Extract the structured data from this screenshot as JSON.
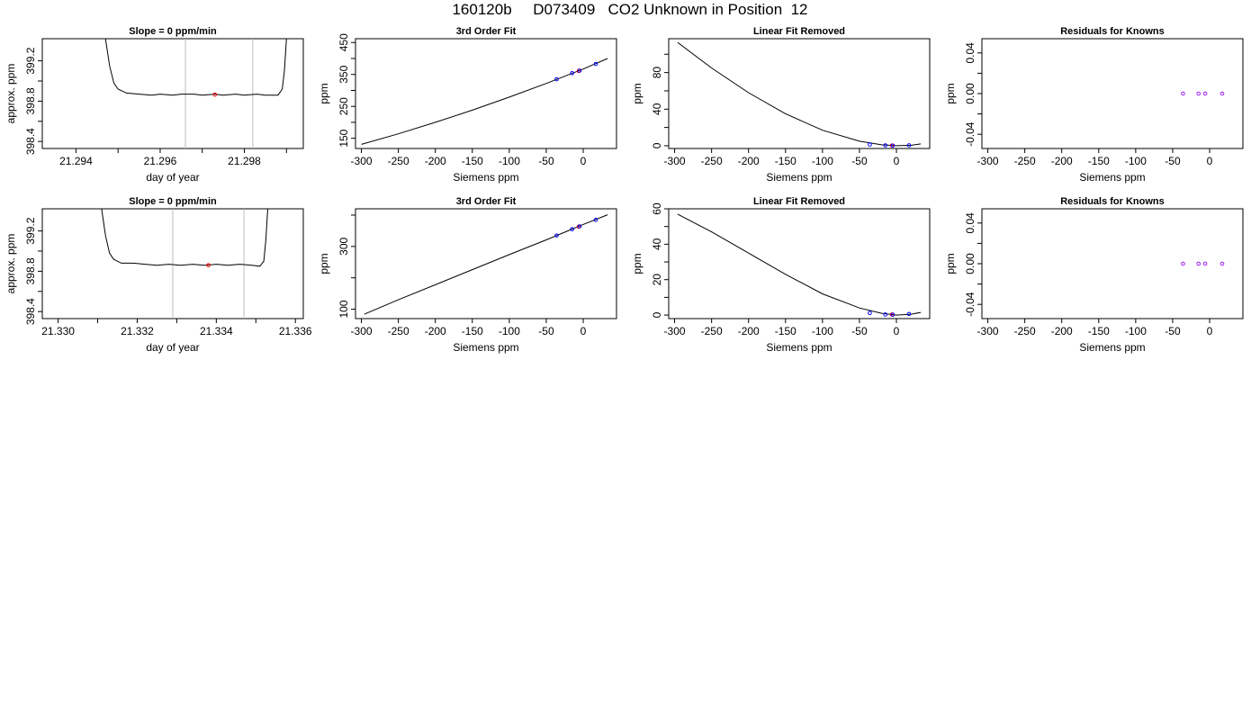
{
  "page": {
    "title": "160120b     D073409   CO2 Unknown in Position  12"
  },
  "colors": {
    "line": "#000000",
    "unknown_point": "#ff0000",
    "known_point": "#0000ff",
    "residual_point": "#a020f0",
    "marker_line": "#bebebe"
  },
  "chart_data": [
    {
      "type": "line",
      "title": "Slope =  0  ppm/min",
      "xlabel": "day of year",
      "ylabel": "approx. ppm",
      "xlim": [
        21.2932,
        21.2994
      ],
      "ylim": [
        398.33,
        399.42
      ],
      "xticks": [
        21.294,
        21.295,
        21.296,
        21.297,
        21.298,
        21.299
      ],
      "xtick_labels": [
        "21.294",
        "",
        "21.296",
        "",
        "21.298",
        ""
      ],
      "yticks": [
        398.4,
        398.6,
        398.8,
        399.0,
        399.2
      ],
      "ytick_labels": [
        "398.4",
        "",
        "398.8",
        "",
        "399.2"
      ],
      "vlines": [
        21.2966,
        21.2982
      ],
      "x": [
        21.2947,
        21.2948,
        21.2949,
        21.295,
        21.2952,
        21.2955,
        21.2958,
        21.296,
        21.2963,
        21.2965,
        21.2968,
        21.297,
        21.2973,
        21.2975,
        21.2978,
        21.298,
        21.2983,
        21.2985,
        21.2988,
        21.2989,
        21.29895,
        21.299
      ],
      "y": [
        399.42,
        399.15,
        398.98,
        398.92,
        398.88,
        398.87,
        398.86,
        398.87,
        398.86,
        398.87,
        398.87,
        398.86,
        398.87,
        398.86,
        398.87,
        398.86,
        398.87,
        398.86,
        398.86,
        398.92,
        399.1,
        399.42
      ],
      "points": [
        {
          "x": 21.2973,
          "y": 398.865,
          "color": "#ff0000"
        }
      ]
    },
    {
      "type": "line",
      "title": "3rd Order Fit",
      "xlabel": "Siemens ppm",
      "ylabel": "ppm",
      "xlim": [
        -308,
        45
      ],
      "ylim": [
        118,
        462
      ],
      "xticks": [
        -300,
        -250,
        -200,
        -150,
        -100,
        -50,
        0
      ],
      "xtick_labels": [
        "-300",
        "-250",
        "-200",
        "-150",
        "-100",
        "-50",
        "0"
      ],
      "yticks": [
        150,
        200,
        250,
        300,
        350,
        400,
        450
      ],
      "ytick_labels": [
        "150",
        "",
        "250",
        "",
        "350",
        "",
        "450"
      ],
      "x": [
        -300,
        -250,
        -200,
        -150,
        -100,
        -50,
        0,
        33
      ],
      "y": [
        131,
        164,
        200,
        238,
        279,
        322,
        367,
        400
      ],
      "points": [
        {
          "x": -36,
          "y": 335,
          "color": "#0000ff"
        },
        {
          "x": -15,
          "y": 354,
          "color": "#0000ff"
        },
        {
          "x": -6,
          "y": 361,
          "color": "#ff0000"
        },
        {
          "x": -5,
          "y": 362,
          "color": "#0000ff"
        },
        {
          "x": 17,
          "y": 383,
          "color": "#0000ff"
        }
      ]
    },
    {
      "type": "line",
      "title": "Linear Fit Removed",
      "xlabel": "Siemens ppm",
      "ylabel": "ppm",
      "xlim": [
        -308,
        45
      ],
      "ylim": [
        -3,
        117
      ],
      "xticks": [
        -300,
        -250,
        -200,
        -150,
        -100,
        -50,
        0
      ],
      "xtick_labels": [
        "-300",
        "-250",
        "-200",
        "-150",
        "-100",
        "-50",
        "0"
      ],
      "yticks": [
        0,
        20,
        40,
        60,
        80,
        100
      ],
      "ytick_labels": [
        "0",
        "",
        "40",
        "",
        "80",
        ""
      ],
      "x": [
        -296,
        -250,
        -200,
        -150,
        -100,
        -50,
        -20,
        0,
        20,
        33
      ],
      "y": [
        113,
        85,
        58,
        35,
        17,
        5,
        1,
        0,
        0.5,
        2
      ],
      "points": [
        {
          "x": -36,
          "y": 1.3,
          "color": "#0000ff"
        },
        {
          "x": -15,
          "y": 0.4,
          "color": "#0000ff"
        },
        {
          "x": -6,
          "y": 0.3,
          "color": "#ff0000"
        },
        {
          "x": -5,
          "y": 0.2,
          "color": "#0000ff"
        },
        {
          "x": 17,
          "y": 0.5,
          "color": "#0000ff"
        }
      ]
    },
    {
      "type": "scatter",
      "title": "Residuals for Knowns",
      "xlabel": "Siemens ppm",
      "ylabel": "ppm",
      "xlim": [
        -308,
        45
      ],
      "ylim": [
        -0.054,
        0.054
      ],
      "xticks": [
        -300,
        -250,
        -200,
        -150,
        -100,
        -50,
        0
      ],
      "xtick_labels": [
        "-300",
        "-250",
        "-200",
        "-150",
        "-100",
        "-50",
        "0"
      ],
      "yticks": [
        -0.04,
        -0.02,
        0.0,
        0.02,
        0.04
      ],
      "ytick_labels": [
        "-0.04",
        "",
        "0.00",
        "",
        "0.04"
      ],
      "points": [
        {
          "x": -36,
          "y": 0,
          "color": "#a020f0"
        },
        {
          "x": -15,
          "y": 0,
          "color": "#a020f0"
        },
        {
          "x": -6,
          "y": 0,
          "color": "#a020f0"
        },
        {
          "x": 17,
          "y": 0,
          "color": "#a020f0"
        }
      ]
    },
    {
      "type": "line",
      "title": "Slope =  0  ppm/min",
      "xlabel": "day of year",
      "ylabel": "approx. ppm",
      "xlim": [
        21.3296,
        21.3362
      ],
      "ylim": [
        398.33,
        399.42
      ],
      "xticks": [
        21.33,
        21.331,
        21.332,
        21.333,
        21.334,
        21.335,
        21.336
      ],
      "xtick_labels": [
        "21.330",
        "",
        "21.332",
        "",
        "21.334",
        "",
        "21.336"
      ],
      "yticks": [
        398.4,
        398.6,
        398.8,
        399.0,
        399.2
      ],
      "ytick_labels": [
        "398.4",
        "",
        "398.8",
        "",
        "399.2"
      ],
      "vlines": [
        21.3329,
        21.3347
      ],
      "x": [
        21.3311,
        21.3312,
        21.3313,
        21.3314,
        21.3316,
        21.3319,
        21.3322,
        21.3325,
        21.3328,
        21.3331,
        21.3334,
        21.3337,
        21.334,
        21.3343,
        21.3346,
        21.3349,
        21.3351,
        21.3352,
        21.33525,
        21.3353
      ],
      "y": [
        399.42,
        399.15,
        398.98,
        398.92,
        398.88,
        398.88,
        398.87,
        398.86,
        398.87,
        398.86,
        398.87,
        398.86,
        398.87,
        398.86,
        398.87,
        398.86,
        398.85,
        398.9,
        399.1,
        399.42
      ],
      "points": [
        {
          "x": 21.3338,
          "y": 398.86,
          "color": "#ff0000"
        }
      ]
    },
    {
      "type": "line",
      "title": "3rd Order Fit",
      "xlabel": "Siemens ppm",
      "ylabel": "ppm",
      "xlim": [
        -308,
        45
      ],
      "ylim": [
        70,
        420
      ],
      "xticks": [
        -300,
        -250,
        -200,
        -150,
        -100,
        -50,
        0
      ],
      "xtick_labels": [
        "-300",
        "-250",
        "-200",
        "-150",
        "-100",
        "-50",
        "0"
      ],
      "yticks": [
        100,
        200,
        300,
        400
      ],
      "ytick_labels": [
        "100",
        "",
        "300",
        ""
      ],
      "x": [
        -296,
        -250,
        -200,
        -150,
        -100,
        -50,
        0,
        33
      ],
      "y": [
        84,
        130,
        178,
        226,
        274,
        321,
        370,
        401
      ],
      "points": [
        {
          "x": -36,
          "y": 335,
          "color": "#0000ff"
        },
        {
          "x": -15,
          "y": 355,
          "color": "#0000ff"
        },
        {
          "x": -6,
          "y": 363,
          "color": "#ff0000"
        },
        {
          "x": -5,
          "y": 364,
          "color": "#0000ff"
        },
        {
          "x": 17,
          "y": 385,
          "color": "#0000ff"
        }
      ]
    },
    {
      "type": "line",
      "title": "Linear Fit Removed",
      "xlabel": "Siemens ppm",
      "ylabel": "ppm",
      "xlim": [
        -308,
        45
      ],
      "ylim": [
        -2,
        60
      ],
      "xticks": [
        -300,
        -250,
        -200,
        -150,
        -100,
        -50,
        0
      ],
      "xtick_labels": [
        "-300",
        "-250",
        "-200",
        "-150",
        "-100",
        "-50",
        "0"
      ],
      "yticks": [
        0,
        10,
        20,
        30,
        40,
        50,
        60
      ],
      "ytick_labels": [
        "0",
        "",
        "20",
        "",
        "40",
        "",
        "60"
      ],
      "x": [
        -296,
        -250,
        -200,
        -150,
        -100,
        -50,
        -20,
        0,
        20,
        33
      ],
      "y": [
        57,
        47,
        35,
        23,
        12,
        4,
        1,
        0,
        0.5,
        1.5
      ],
      "points": [
        {
          "x": -36,
          "y": 1.2,
          "color": "#0000ff"
        },
        {
          "x": -15,
          "y": 0.3,
          "color": "#0000ff"
        },
        {
          "x": -6,
          "y": 0.3,
          "color": "#ff0000"
        },
        {
          "x": -5,
          "y": 0.2,
          "color": "#0000ff"
        },
        {
          "x": 17,
          "y": 0.6,
          "color": "#0000ff"
        }
      ]
    },
    {
      "type": "scatter",
      "title": "Residuals for Knowns",
      "xlabel": "Siemens ppm",
      "ylabel": "ppm",
      "xlim": [
        -308,
        45
      ],
      "ylim": [
        -0.054,
        0.054
      ],
      "xticks": [
        -300,
        -250,
        -200,
        -150,
        -100,
        -50,
        0
      ],
      "xtick_labels": [
        "-300",
        "-250",
        "-200",
        "-150",
        "-100",
        "-50",
        "0"
      ],
      "yticks": [
        -0.04,
        -0.02,
        0.0,
        0.02,
        0.04
      ],
      "ytick_labels": [
        "-0.04",
        "",
        "0.00",
        "",
        "0.04"
      ],
      "points": [
        {
          "x": -36,
          "y": 0,
          "color": "#a020f0"
        },
        {
          "x": -15,
          "y": 0,
          "color": "#a020f0"
        },
        {
          "x": -6,
          "y": 0,
          "color": "#a020f0"
        },
        {
          "x": 17,
          "y": 0,
          "color": "#a020f0"
        }
      ]
    }
  ]
}
